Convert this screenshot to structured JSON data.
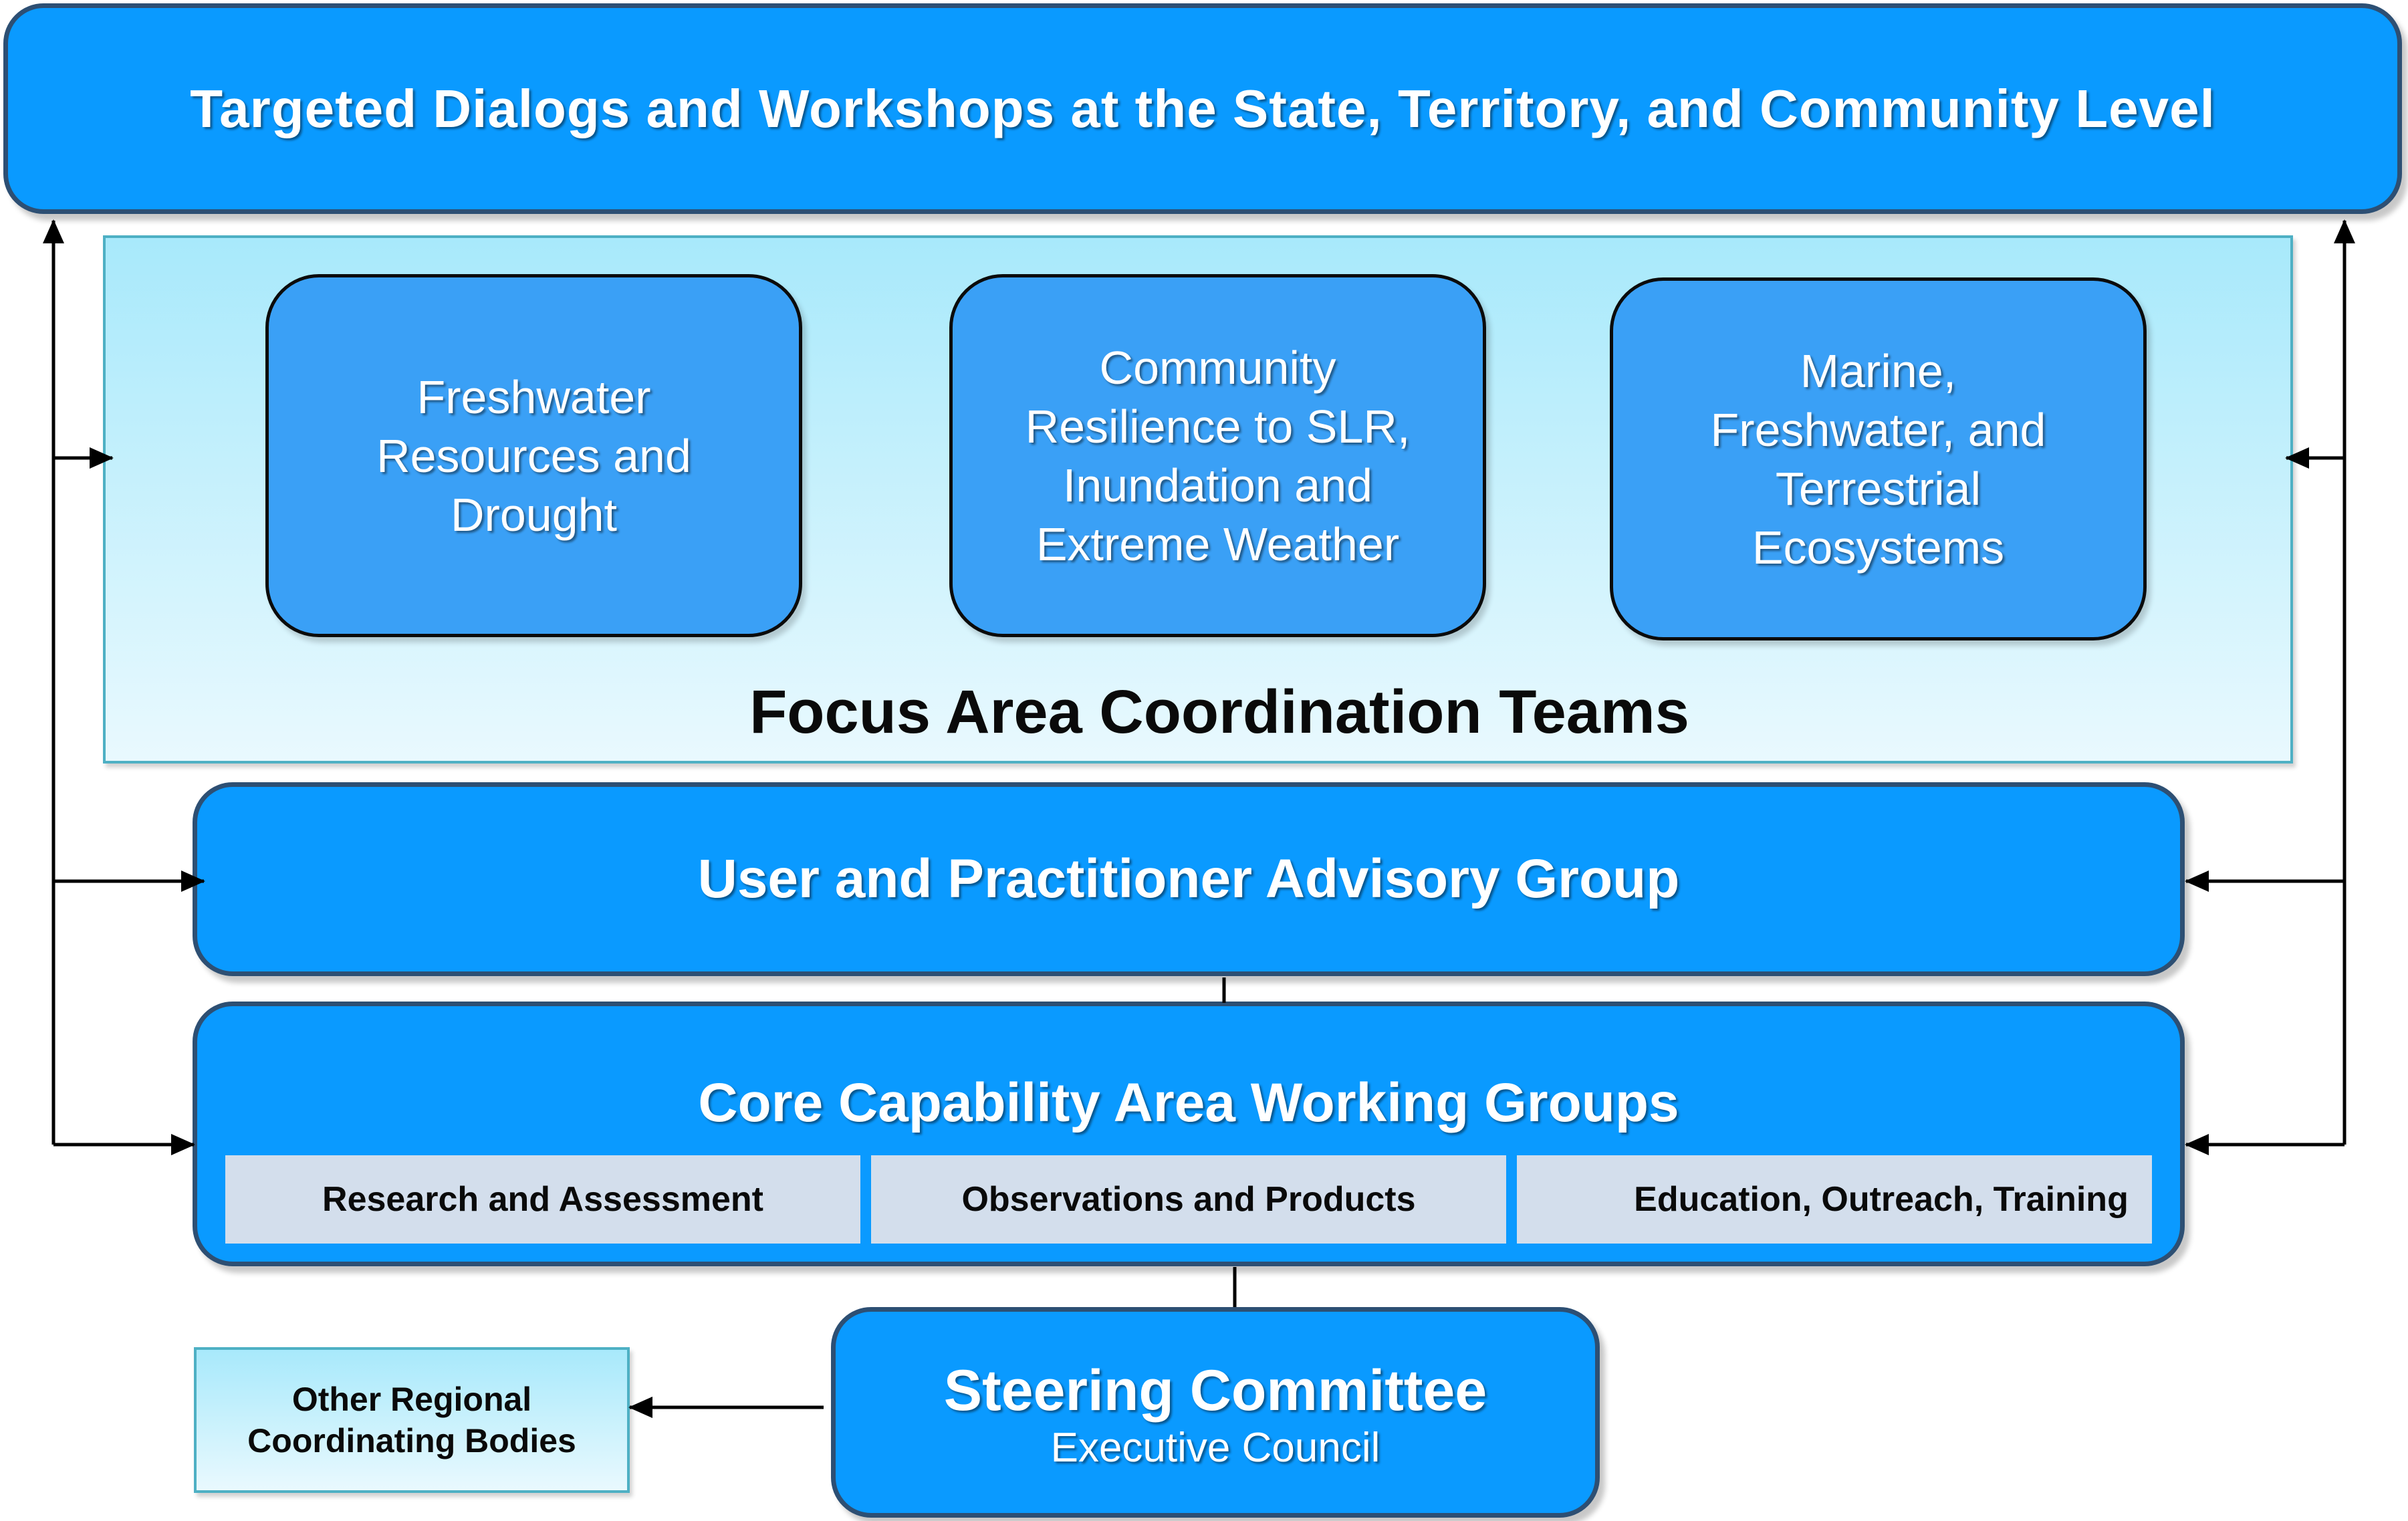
{
  "top_banner": {
    "title": "Targeted Dialogs and Workshops at the State, Territory, and Community Level"
  },
  "focus_area_panel": {
    "caption": "Focus Area Coordination Teams",
    "teams": [
      {
        "label": "Freshwater Resources and Drought"
      },
      {
        "label": "Community Resilience to SLR, Inundation and Extreme Weather"
      },
      {
        "label": "Marine, Freshwater, and Terrestrial Ecosystems"
      }
    ]
  },
  "advisory_group": {
    "title": "User and Practitioner Advisory Group"
  },
  "core_capability": {
    "title": "Core Capability Area Working Groups",
    "areas": [
      {
        "label": "Research and Assessment"
      },
      {
        "label": "Observations and Products"
      },
      {
        "label": "Education, Outreach, Training"
      }
    ]
  },
  "steering_committee": {
    "title": "Steering Committee",
    "subtitle": "Executive Council"
  },
  "other_bodies": {
    "label": "Other Regional Coordinating Bodies"
  },
  "colors": {
    "box_fill": "#0a9aff",
    "box_border": "#2d4f73",
    "focus_box_fill": "#3aa0f6",
    "panel_top": "#a8e9fb",
    "panel_bottom": "#e9f9fe",
    "sub_box_fill": "#d3deec",
    "connector": "#000000"
  }
}
